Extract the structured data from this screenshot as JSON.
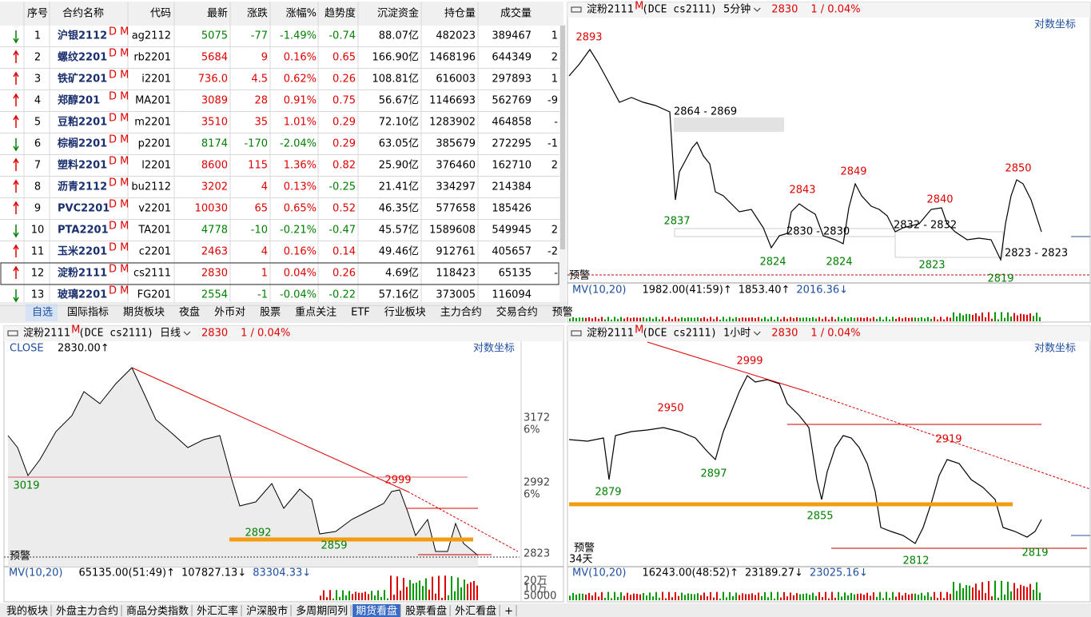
{
  "quote_table": {
    "headers": [
      "序号",
      "合约名称",
      "代码",
      "最新",
      "涨跌",
      "涨幅%",
      "趋势度",
      "沉淀资金",
      "持仓量",
      "成交量"
    ],
    "rows": [
      {
        "cells": [
          "1",
          "沪银2112",
          "ag2112",
          "5075",
          "-77",
          "-1.49%",
          "-0.74",
          "88.07亿",
          "482023",
          "389467",
          "1"
        ],
        "tag": "D M"
      },
      {
        "cells": [
          "2",
          "螺纹2201",
          "rb2201",
          "5684",
          "9",
          "0.16%",
          "0.65",
          "166.90亿",
          "1468196",
          "644349",
          "2"
        ],
        "tag": "D M"
      },
      {
        "cells": [
          "3",
          "铁矿2201",
          "i2201",
          "736.0",
          "4.5",
          "0.62%",
          "0.26",
          "108.81亿",
          "616003",
          "297893",
          "1"
        ],
        "tag": "D M"
      },
      {
        "cells": [
          "4",
          "郑醇201",
          "MA201",
          "3089",
          "28",
          "0.91%",
          "0.75",
          "56.67亿",
          "1146693",
          "562769",
          "-9"
        ],
        "tag": "D M"
      },
      {
        "cells": [
          "5",
          "豆粕2201",
          "m2201",
          "3510",
          "35",
          "1.01%",
          "0.29",
          "72.10亿",
          "1283902",
          "464858",
          "-"
        ],
        "tag": "D M"
      },
      {
        "cells": [
          "6",
          "棕榈2201",
          "p2201",
          "8174",
          "-170",
          "-2.04%",
          "0.29",
          "63.05亿",
          "385679",
          "272295",
          "-1"
        ],
        "tag": "D M"
      },
      {
        "cells": [
          "7",
          "塑料2201",
          "l2201",
          "8600",
          "115",
          "1.36%",
          "0.82",
          "25.90亿",
          "376460",
          "162710",
          "2"
        ],
        "tag": "D M"
      },
      {
        "cells": [
          "8",
          "沥青2112",
          "bu2112",
          "3202",
          "4",
          "0.13%",
          "-0.25",
          "21.41亿",
          "334297",
          "214384",
          null
        ],
        "tag": "D M"
      },
      {
        "cells": [
          "9",
          "PVC2201",
          "v2201",
          "10030",
          "65",
          "0.65%",
          "0.52",
          "46.35亿",
          "577658",
          "185426",
          null
        ],
        "tag": "D M"
      },
      {
        "cells": [
          "10",
          "PTA2201",
          "TA201",
          "4778",
          "-10",
          "-0.21%",
          "-0.47",
          "45.57亿",
          "1589608",
          "549945",
          "2"
        ],
        "tag": "D M"
      },
      {
        "cells": [
          "11",
          "玉米2201",
          "c2201",
          "2463",
          "4",
          "0.16%",
          "0.14",
          "49.46亿",
          "912761",
          "405657",
          "-2"
        ],
        "tag": "D M"
      },
      {
        "cells": [
          "12",
          "淀粉2111",
          "cs2111",
          "2830",
          "1",
          "0.04%",
          "0.26",
          "4.69亿",
          "118423",
          "65135",
          "-"
        ],
        "tag": "D M"
      },
      {
        "cells": [
          "13",
          "玻璃2201",
          "FG201",
          "2554",
          "-1",
          "-0.04%",
          "-0.22",
          "57.16亿",
          "373005",
          "116094",
          null
        ],
        "tag": "D M"
      }
    ]
  },
  "tabs": [
    "自选",
    "国际指标",
    "期货板块",
    "夜盘",
    "外币对",
    "股票",
    "重点关注",
    "ETF",
    "行业板块",
    "主力合约",
    "交易合约",
    "预警"
  ],
  "charts": [
    {
      "title": "淀粉2111",
      "tag": "M",
      "code": "(DCE cs2111)",
      "period": "5分钟",
      "price": "2830",
      "change": "1 / 0.04%",
      "log_label": "对数坐标",
      "annotations": [
        {
          "text": "2893",
          "color": "#e00000"
        },
        {
          "text": "2864 - 2869",
          "color": "#000000"
        },
        {
          "text": "2837",
          "color": "#008000"
        },
        {
          "text": "2843",
          "color": "#e00000"
        },
        {
          "text": "2849",
          "color": "#e00000"
        },
        {
          "text": "2824",
          "color": "#008000"
        },
        {
          "text": "2824",
          "color": "#008000"
        },
        {
          "text": "2830 - 2830",
          "color": "#000000"
        },
        {
          "text": "2832 - 2832",
          "color": "#000000"
        },
        {
          "text": "2840",
          "color": "#e00000"
        },
        {
          "text": "2823",
          "color": "#008000"
        },
        {
          "text": "2850",
          "color": "#e00000"
        },
        {
          "text": "2823 - 2823",
          "color": "#000000"
        },
        {
          "text": "2819",
          "color": "#008000"
        },
        {
          "text": "预警",
          "color": "#000000"
        }
      ],
      "indicator": {
        "name": "MV(10,20)",
        "values": [
          "1982.00(41:59)↑",
          "1853.40↑",
          "2016.36↓"
        ]
      }
    },
    {
      "title": "淀粉2111",
      "tag": "M",
      "code": "(DCE cs2111)",
      "period": "日线",
      "price": "2830",
      "change": "1 / 0.04%",
      "log_label": "对数坐标",
      "close_label": "CLOSE",
      "close_value": "2830.00↑",
      "axis_labels": [
        "3172",
        "6%",
        "2992",
        "6%",
        "2823",
        "20万",
        "10万",
        "50000"
      ],
      "annotations": [
        {
          "text": "3019",
          "color": "#008000"
        },
        {
          "text": "2999",
          "color": "#e00000"
        },
        {
          "text": "2892",
          "color": "#008000"
        },
        {
          "text": "2859",
          "color": "#008000"
        },
        {
          "text": "预警",
          "color": "#000000"
        }
      ],
      "indicator": {
        "name": "MV(10,20)",
        "values": [
          "65135.00(51:49)↑",
          "107827.13↓",
          "83304.33↓"
        ]
      }
    },
    {
      "title": "淀粉2111",
      "tag": "M",
      "code": "(DCE cs2111)",
      "period": "1小时",
      "price": "2830",
      "change": "1 / 0.04%",
      "log_label": "对数坐标",
      "annotations": [
        {
          "text": "2999",
          "color": "#e00000"
        },
        {
          "text": "2950",
          "color": "#e00000"
        },
        {
          "text": "2919",
          "color": "#e00000"
        },
        {
          "text": "2879",
          "color": "#008000"
        },
        {
          "text": "2897",
          "color": "#008000"
        },
        {
          "text": "2855",
          "color": "#008000"
        },
        {
          "text": "2812",
          "color": "#008000"
        },
        {
          "text": "2819",
          "color": "#008000"
        },
        {
          "text": "预警",
          "color": "#000000"
        },
        {
          "text": "34天",
          "color": "#000000"
        }
      ],
      "indicator": {
        "name": "MV(10,20)",
        "values": [
          "16243.00(48:52)↑",
          "23189.27↓",
          "23025.16↓"
        ]
      }
    }
  ],
  "bottom_tabs": [
    "我的板块",
    "外盘主力合约",
    "商品分类指数",
    "外汇汇率",
    "沪深股市",
    "多周期同列",
    "期货看盘",
    "股票看盘",
    "外汇看盘",
    "+"
  ]
}
